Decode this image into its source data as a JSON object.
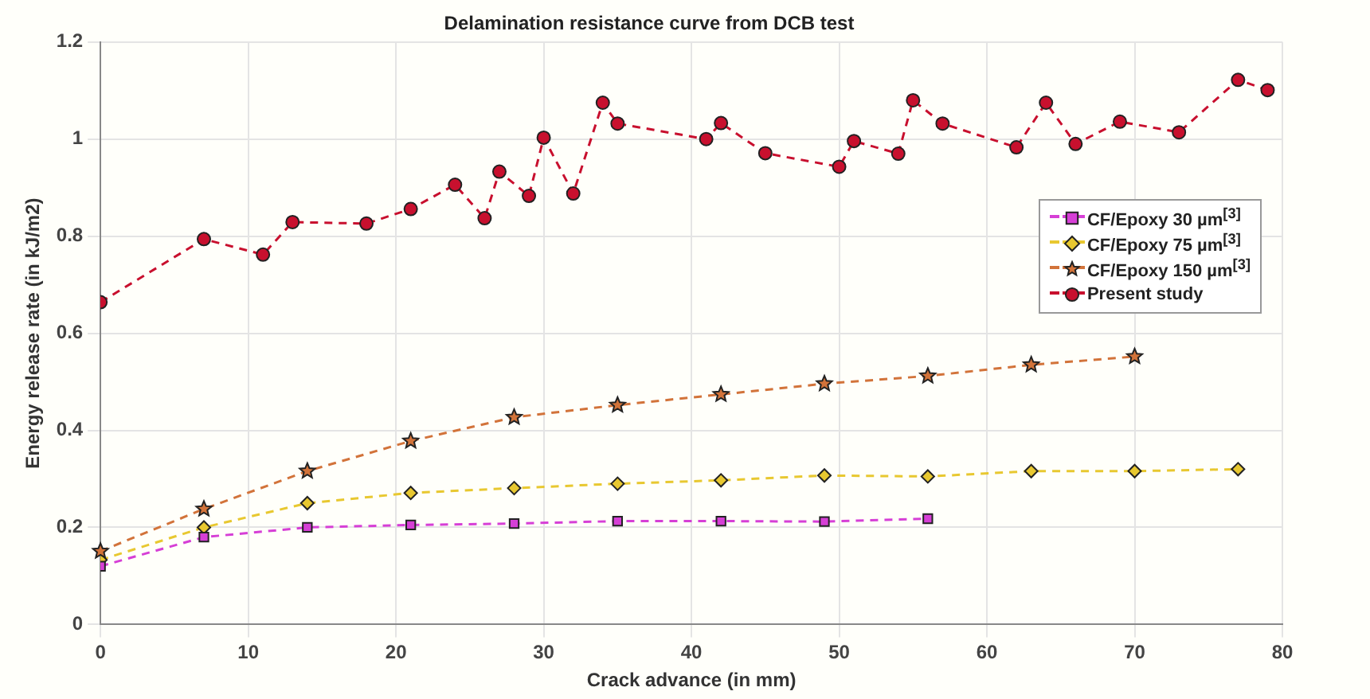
{
  "chart_data": {
    "type": "line",
    "title": "Delamination resistance curve from DCB test",
    "xlabel": "Crack advance (in mm)",
    "ylabel": "Energy release rate (in kJ/m2)",
    "xlim": [
      0,
      80
    ],
    "xticks": [
      0,
      10,
      20,
      30,
      40,
      50,
      60,
      70,
      80
    ],
    "ylim": [
      0,
      1.2
    ],
    "yticks": [
      0,
      0.2,
      0.4,
      0.6,
      0.8,
      1,
      1.2
    ],
    "grid": true,
    "legend": "right",
    "line_style": "dashed",
    "series": [
      {
        "name": "CF/Epoxy 30 µm$^{[3]}$",
        "color": "#d63fd6",
        "marker": "square",
        "x": [
          0,
          7,
          14,
          21,
          28,
          35,
          42,
          49,
          56
        ],
        "values": [
          0.12,
          0.18,
          0.2,
          0.205,
          0.208,
          0.213,
          0.213,
          0.212,
          0.218
        ]
      },
      {
        "name": "CF/Epoxy 75 µm$^{[3]}$",
        "color": "#e8c830",
        "marker": "diamond",
        "x": [
          0,
          7,
          14,
          21,
          28,
          35,
          42,
          49,
          56,
          63,
          70,
          77
        ],
        "values": [
          0.133,
          0.2,
          0.25,
          0.271,
          0.281,
          0.29,
          0.297,
          0.307,
          0.305,
          0.316,
          0.316,
          0.32
        ]
      },
      {
        "name": "CF/Epoxy 150 µm$^{[3]}$",
        "color": "#d2733a",
        "marker": "star",
        "x": [
          0,
          7,
          14,
          21,
          28,
          35,
          42,
          49,
          56,
          63,
          70
        ],
        "values": [
          0.151,
          0.238,
          0.316,
          0.378,
          0.427,
          0.452,
          0.474,
          0.496,
          0.512,
          0.535,
          0.552
        ]
      },
      {
        "name": "Present study",
        "color": "#c8102e",
        "marker": "circle",
        "x": [
          0,
          7,
          11,
          13,
          18,
          21,
          24,
          26,
          27,
          29,
          30,
          32,
          34,
          35,
          41,
          42,
          45,
          50,
          51,
          54,
          55,
          57,
          62,
          64,
          66,
          69,
          73,
          77,
          79
        ],
        "values": [
          0.664,
          0.794,
          0.762,
          0.829,
          0.826,
          0.856,
          0.906,
          0.837,
          0.933,
          0.883,
          1.003,
          0.888,
          1.075,
          1.032,
          1.0,
          1.033,
          0.971,
          0.943,
          0.996,
          0.97,
          1.08,
          1.032,
          0.983,
          1.075,
          0.99,
          1.036,
          1.014,
          1.122,
          1.101
        ]
      }
    ]
  }
}
